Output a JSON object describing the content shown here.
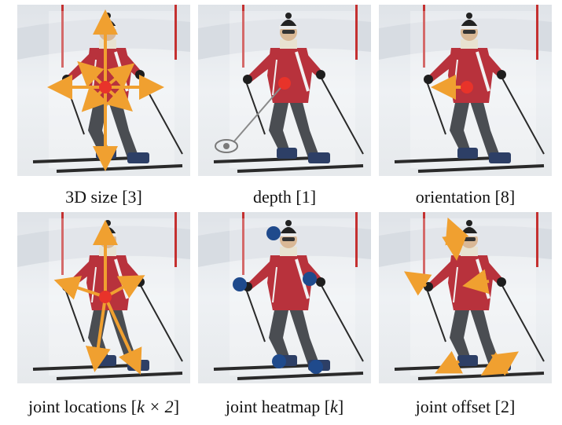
{
  "colors": {
    "arrow": "#f0a030",
    "center_dot": "#e8332a",
    "joint_dot": "#1f4a8c",
    "jacket": "#b8323c",
    "pants": "#4a4d52",
    "snow": "#eef1f4",
    "pole": "#c43030"
  },
  "panels": [
    {
      "id": "3d-size",
      "caption": "3D size [3]"
    },
    {
      "id": "depth",
      "caption": "depth [1]"
    },
    {
      "id": "orientation",
      "caption": "orientation [8]"
    },
    {
      "id": "joint-locations",
      "caption_prefix": "joint locations [",
      "caption_math": "k × 2",
      "caption_suffix": "]"
    },
    {
      "id": "joint-heatmap",
      "caption_prefix": "joint heatmap [",
      "caption_math": "k",
      "caption_suffix": "]"
    },
    {
      "id": "joint-offset",
      "caption": "joint offset [2]"
    }
  ],
  "icons": {
    "camera": "eye-icon"
  }
}
